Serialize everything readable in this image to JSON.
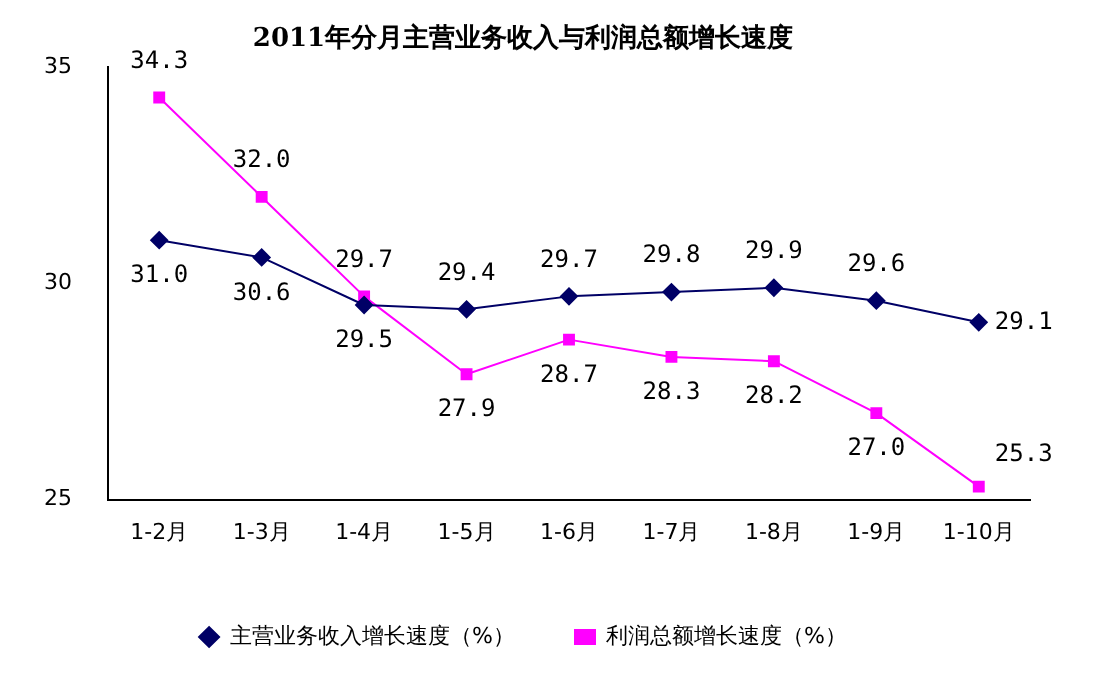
{
  "chart_data": {
    "type": "line",
    "title": "2011年分月主营业务收入与利润总额增长速度",
    "categories": [
      "1-2月",
      "1-3月",
      "1-4月",
      "1-5月",
      "1-6月",
      "1-7月",
      "1-8月",
      "1-9月",
      "1-10月"
    ],
    "series": [
      {
        "name": "主营业务收入增长速度（%）",
        "color": "#000066",
        "marker": "diamond",
        "values": [
          31.0,
          30.6,
          29.5,
          29.4,
          29.7,
          29.8,
          29.9,
          29.6,
          29.1
        ],
        "value_labels": [
          "31.0",
          "30.6",
          "29.5",
          "29.4",
          "29.7",
          "29.8",
          "29.9",
          "29.6",
          "29.1"
        ]
      },
      {
        "name": "利润总额增长速度（%）",
        "color": "#ff00ff",
        "marker": "square",
        "values": [
          34.3,
          32.0,
          29.7,
          27.9,
          28.7,
          28.3,
          28.2,
          27.0,
          25.3
        ],
        "value_labels": [
          "34.3",
          "32.0",
          "29.7",
          "27.9",
          "28.7",
          "28.3",
          "28.2",
          "27.0",
          "25.3"
        ]
      }
    ],
    "ylim": [
      25,
      35
    ],
    "yticks": [
      25,
      30,
      35
    ],
    "grid": false,
    "legend": "bottom",
    "line_style": "solid"
  }
}
